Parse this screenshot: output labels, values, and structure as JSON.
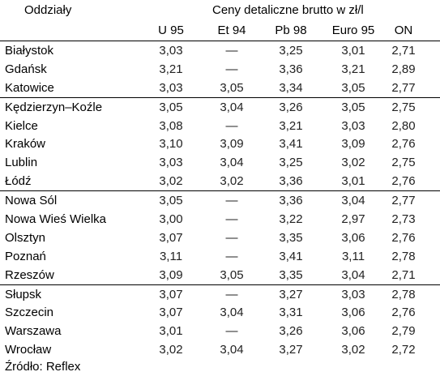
{
  "header": {
    "col0": "Oddziały",
    "group": "Ceny detaliczne brutto w zł/l",
    "cols": [
      "U 95",
      "Et 94",
      "Pb 98",
      "Euro 95",
      "ON"
    ]
  },
  "rows": [
    {
      "name": "Białystok",
      "v": [
        "3,03",
        "—",
        "3,25",
        "3,01",
        "2,71"
      ]
    },
    {
      "name": "Gdańsk",
      "v": [
        "3,21",
        "—",
        "3,36",
        "3,21",
        "2,89"
      ]
    },
    {
      "name": "Katowice",
      "v": [
        "3,03",
        "3,05",
        "3,34",
        "3,05",
        "2,77"
      ]
    },
    {
      "name": "Kędzierzyn–Koźle",
      "v": [
        "3,05",
        "3,04",
        "3,26",
        "3,05",
        "2,75"
      ]
    },
    {
      "name": "Kielce",
      "v": [
        "3,08",
        "—",
        "3,21",
        "3,03",
        "2,80"
      ]
    },
    {
      "name": "Kraków",
      "v": [
        "3,10",
        "3,09",
        "3,41",
        "3,09",
        "2,76"
      ]
    },
    {
      "name": "Lublin",
      "v": [
        "3,03",
        "3,04",
        "3,25",
        "3,02",
        "2,75"
      ]
    },
    {
      "name": "Łódź",
      "v": [
        "3,02",
        "3,02",
        "3,36",
        "3,01",
        "2,76"
      ]
    },
    {
      "name": "Nowa Sól",
      "v": [
        "3,05",
        "—",
        "3,36",
        "3,04",
        "2,77"
      ]
    },
    {
      "name": "Nowa Wieś Wielka",
      "v": [
        "3,00",
        "—",
        "3,22",
        "2,97",
        "2,73"
      ]
    },
    {
      "name": "Olsztyn",
      "v": [
        "3,07",
        "—",
        "3,35",
        "3,06",
        "2,76"
      ]
    },
    {
      "name": "Poznań",
      "v": [
        "3,11",
        "—",
        "3,41",
        "3,11",
        "2,78"
      ]
    },
    {
      "name": "Rzeszów",
      "v": [
        "3,09",
        "3,05",
        "3,35",
        "3,04",
        "2,71"
      ]
    },
    {
      "name": "Słupsk",
      "v": [
        "3,07",
        "—",
        "3,27",
        "3,03",
        "2,78"
      ]
    },
    {
      "name": "Szczecin",
      "v": [
        "3,07",
        "3,04",
        "3,31",
        "3,06",
        "2,76"
      ]
    },
    {
      "name": "Warszawa",
      "v": [
        "3,01",
        "—",
        "3,26",
        "3,06",
        "2,79"
      ]
    },
    {
      "name": "Wrocław",
      "v": [
        "3,02",
        "3,04",
        "3,27",
        "3,02",
        "2,72"
      ]
    }
  ],
  "source": "Źródło: Reflex"
}
